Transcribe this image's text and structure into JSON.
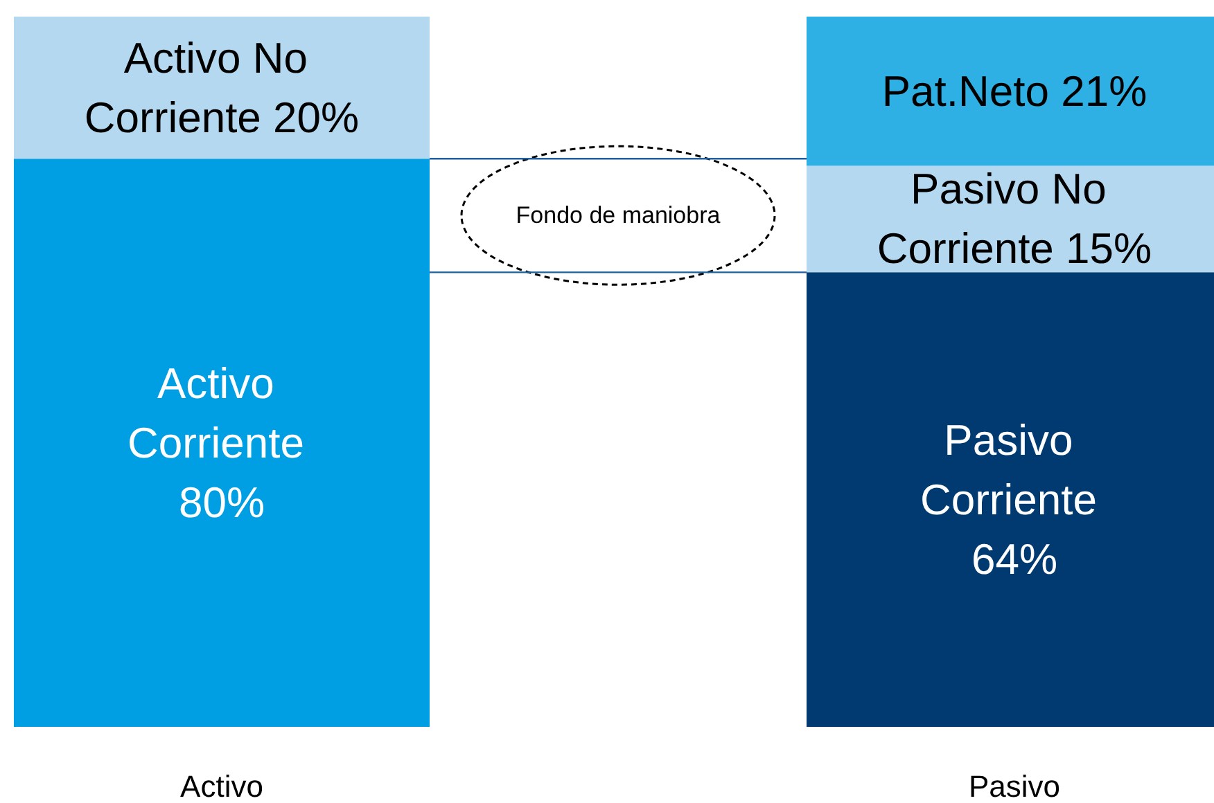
{
  "chart_data": {
    "type": "bar",
    "stacked": true,
    "categories": [
      "Activo",
      "Pasivo"
    ],
    "ylim": [
      0,
      100
    ],
    "tick_labels": "x",
    "legend": false,
    "series": [
      {
        "name": "Activo Corriente",
        "color": "#009fe3",
        "values": [
          80,
          null
        ],
        "value_labels": [
          "80%",
          null
        ]
      },
      {
        "name": "Pasivo Corriente",
        "color": "#003a70",
        "values": [
          null,
          64
        ],
        "value_labels": [
          null,
          "64%"
        ]
      },
      {
        "name": "Activo No Corriente",
        "color": "#b4d8f0",
        "values": [
          20,
          null
        ],
        "value_labels": [
          "20%",
          null
        ]
      },
      {
        "name": "Pasivo No Corriente",
        "color": "#b4d8f0",
        "values": [
          null,
          15
        ],
        "value_labels": [
          null,
          "15%"
        ]
      },
      {
        "name": "Pat.Neto",
        "color": "#2eb0e4",
        "values": [
          null,
          21
        ],
        "value_labels": [
          null,
          "21%"
        ]
      }
    ],
    "ref_lines": [
      {
        "axis": "y",
        "value": 80,
        "color": "#1f5f9f"
      },
      {
        "axis": "y",
        "value": 64,
        "color": "#1f5f9f"
      }
    ],
    "annotations": [
      "Fondo de maniobra"
    ]
  }
}
